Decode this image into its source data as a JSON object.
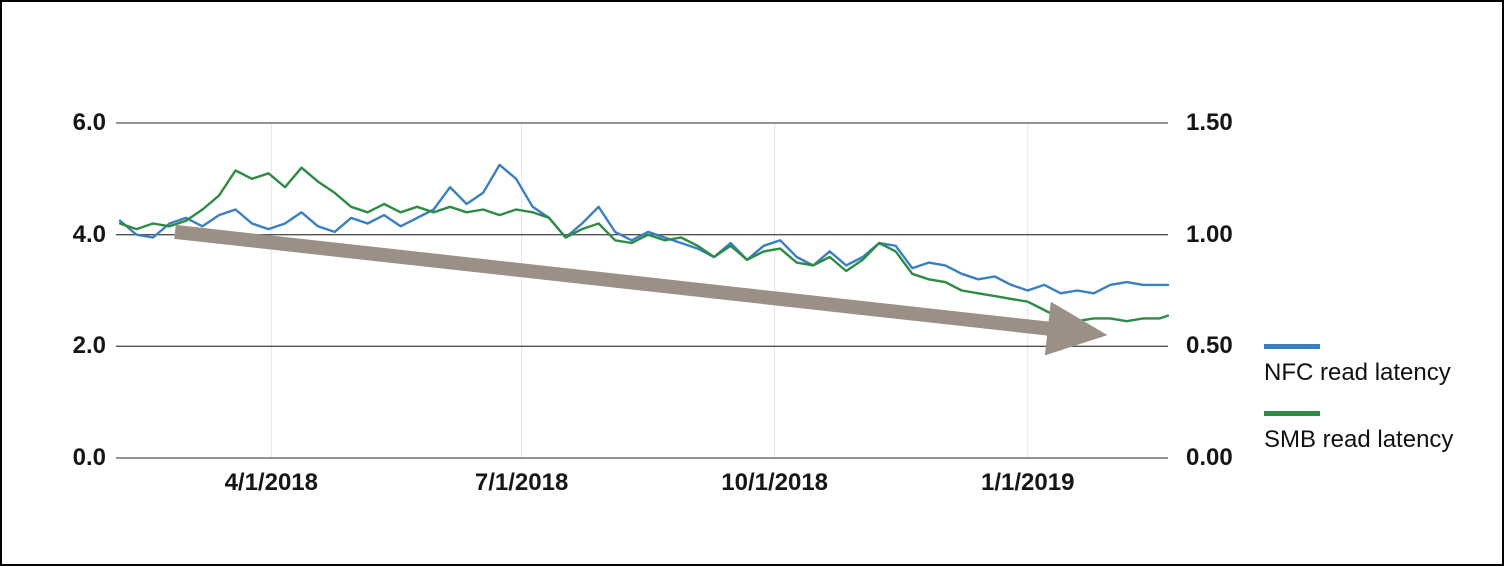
{
  "page": {
    "background_color": "#ffffff",
    "border_color": "#000000"
  },
  "chart_data": {
    "type": "line",
    "title": "",
    "xlabel": "",
    "ylabel_left": "",
    "ylabel_right": "",
    "grid": "horizontal",
    "legend_position": "right",
    "gridline_color": "#57524d",
    "minor_vertical_gridline_color": "#e7e5e1",
    "x_axis": {
      "unit": "days-from-series-start",
      "domain": [
        0,
        381
      ],
      "ticks": [
        {
          "day": 55,
          "label": "4/1/2018"
        },
        {
          "day": 146,
          "label": "7/1/2018"
        },
        {
          "day": 238,
          "label": "10/1/2018"
        },
        {
          "day": 330,
          "label": "1/1/2019"
        }
      ]
    },
    "y_axis_left": {
      "range": [
        0,
        6
      ],
      "ticks": [
        {
          "value": 6.0,
          "label": "6.0"
        },
        {
          "value": 4.0,
          "label": "4.0"
        },
        {
          "value": 2.0,
          "label": "2.0"
        },
        {
          "value": 0.0,
          "label": "0.0"
        }
      ]
    },
    "y_axis_right": {
      "range": [
        0,
        1.5
      ],
      "ticks": [
        {
          "value": 1.5,
          "label": "1.50"
        },
        {
          "value": 1.0,
          "label": "1.00"
        },
        {
          "value": 0.5,
          "label": "0.50"
        },
        {
          "value": 0.0,
          "label": "0.00"
        }
      ]
    },
    "x_days": [
      0,
      6,
      12,
      18,
      24,
      30,
      36,
      42,
      48,
      54,
      60,
      66,
      72,
      78,
      84,
      90,
      96,
      102,
      108,
      114,
      120,
      126,
      132,
      138,
      144,
      150,
      156,
      162,
      168,
      174,
      180,
      186,
      192,
      198,
      204,
      210,
      216,
      222,
      228,
      234,
      240,
      246,
      252,
      258,
      264,
      270,
      276,
      282,
      288,
      294,
      300,
      306,
      312,
      318,
      324,
      330,
      336,
      342,
      348,
      354,
      360,
      366,
      372,
      378,
      381
    ],
    "series": [
      {
        "name": "NFC read latency",
        "color": "#3a7fc1",
        "axis": "left",
        "values": [
          4.25,
          4.0,
          3.95,
          4.2,
          4.3,
          4.15,
          4.35,
          4.45,
          4.2,
          4.1,
          4.2,
          4.4,
          4.15,
          4.05,
          4.3,
          4.2,
          4.35,
          4.15,
          4.3,
          4.45,
          4.85,
          4.55,
          4.75,
          5.25,
          5.0,
          4.5,
          4.3,
          3.95,
          4.2,
          4.5,
          4.05,
          3.9,
          4.05,
          3.95,
          3.85,
          3.75,
          3.6,
          3.85,
          3.55,
          3.8,
          3.9,
          3.6,
          3.45,
          3.7,
          3.45,
          3.6,
          3.85,
          3.8,
          3.4,
          3.5,
          3.45,
          3.3,
          3.2,
          3.25,
          3.1,
          3.0,
          3.1,
          2.95,
          3.0,
          2.95,
          3.1,
          3.15,
          3.1,
          3.1,
          3.1
        ]
      },
      {
        "name": "SMB read latency",
        "color": "#2e8b45",
        "axis": "left",
        "values": [
          4.2,
          4.1,
          4.2,
          4.15,
          4.25,
          4.45,
          4.7,
          5.15,
          5.0,
          5.1,
          4.85,
          5.2,
          4.95,
          4.75,
          4.5,
          4.4,
          4.55,
          4.4,
          4.5,
          4.4,
          4.5,
          4.4,
          4.45,
          4.35,
          4.45,
          4.4,
          4.3,
          3.95,
          4.1,
          4.2,
          3.9,
          3.85,
          4.0,
          3.9,
          3.95,
          3.8,
          3.6,
          3.8,
          3.55,
          3.7,
          3.75,
          3.5,
          3.45,
          3.6,
          3.35,
          3.55,
          3.85,
          3.7,
          3.3,
          3.2,
          3.15,
          3.0,
          2.95,
          2.9,
          2.85,
          2.8,
          2.65,
          2.5,
          2.45,
          2.5,
          2.5,
          2.45,
          2.5,
          2.5,
          2.55
        ]
      }
    ],
    "annotation": {
      "type": "trend-arrow",
      "color": "#9a9085",
      "from": {
        "day": 20,
        "value": 4.05
      },
      "to": {
        "day": 359,
        "value": 2.2
      }
    }
  }
}
